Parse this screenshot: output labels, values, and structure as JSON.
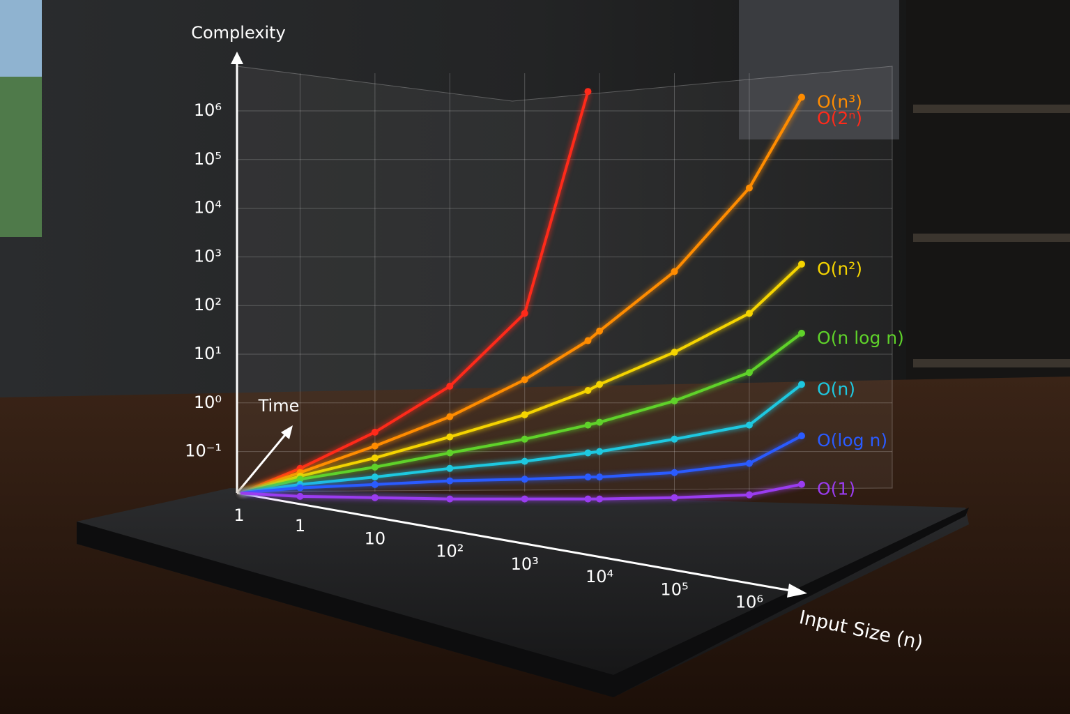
{
  "chart_data": {
    "type": "line",
    "y_label": "Complexity",
    "x_label": "Input Size (n)",
    "z_label": "Time",
    "origin_label": "1",
    "x_scale": "log",
    "y_scale": "log",
    "grid": true,
    "x": [
      0.16,
      1,
      10,
      100,
      1000,
      7000,
      10000,
      100000,
      1000000,
      5000000
    ],
    "xlim": [
      0.16,
      5000000
    ],
    "xticks": [
      1,
      10,
      {
        "value": 100,
        "label": "10²"
      },
      {
        "value": 1000,
        "label": "10³"
      },
      {
        "value": 10000,
        "label": "10⁴"
      },
      {
        "value": 100000,
        "label": "10⁵"
      },
      {
        "value": 1000000,
        "label": "10⁶"
      }
    ],
    "ylim": [
      0.0066,
      7000000
    ],
    "yticks": [
      {
        "value": 0.1,
        "label": "10⁻¹"
      },
      {
        "value": 1,
        "label": "10⁰"
      },
      {
        "value": 10,
        "label": "10¹"
      },
      {
        "value": 100,
        "label": "10²"
      },
      {
        "value": 1000,
        "label": "10³"
      },
      {
        "value": 10000,
        "label": "10⁴"
      },
      {
        "value": 100000,
        "label": "10⁵"
      },
      {
        "value": 1000000,
        "label": "10⁶"
      }
    ],
    "series": [
      {
        "name": "O(2ⁿ)",
        "color": "#ff2a1a",
        "values": [
          0.014,
          0.045,
          0.25,
          2.2,
          69,
          2500000,
          null,
          null,
          null,
          null
        ]
      },
      {
        "name": "O(n³)",
        "color": "#ff8c00",
        "values": [
          0.014,
          0.037,
          0.13,
          0.52,
          3.0,
          19,
          30,
          500,
          26000,
          1900000
        ]
      },
      {
        "name": "O(n²)",
        "color": "#f5d400",
        "values": [
          0.014,
          0.031,
          0.074,
          0.2,
          0.57,
          1.8,
          2.4,
          11,
          69,
          710
        ]
      },
      {
        "name": "O(n log n)",
        "color": "#5fd22a",
        "values": [
          0.014,
          0.027,
          0.048,
          0.094,
          0.18,
          0.35,
          0.4,
          1.1,
          4.2,
          27
        ]
      },
      {
        "name": "O(n)",
        "color": "#1ec8e0",
        "values": [
          0.014,
          0.021,
          0.03,
          0.045,
          0.063,
          0.094,
          0.1,
          0.18,
          0.35,
          2.4
        ]
      },
      {
        "name": "O(log n)",
        "color": "#2a5bff",
        "values": [
          0.014,
          0.018,
          0.021,
          0.025,
          0.027,
          0.03,
          0.03,
          0.037,
          0.057,
          0.21
        ]
      },
      {
        "name": "O(1)",
        "color": "#9a3cf0",
        "values": [
          0.014,
          0.012,
          0.0113,
          0.0106,
          0.0106,
          0.0106,
          0.0106,
          0.0113,
          0.0129,
          0.0212
        ]
      }
    ]
  }
}
